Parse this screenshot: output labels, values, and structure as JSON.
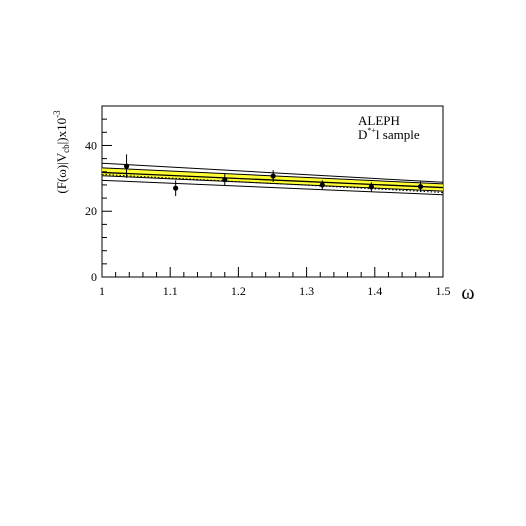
{
  "chart_data": {
    "type": "scatter",
    "title": "",
    "xlabel": "ω",
    "ylabel": "(F(ω)|V_cb|)x10^-3",
    "xlim": [
      1.0,
      1.5
    ],
    "ylim": [
      0,
      52
    ],
    "x_ticks": [
      1,
      1.1,
      1.2,
      1.3,
      1.4,
      1.5
    ],
    "x_tick_labels": [
      "1",
      "1.1",
      "1.2",
      "1.3",
      "1.4",
      "1.5"
    ],
    "y_ticks": [
      0,
      20,
      40
    ],
    "y_tick_labels": [
      "0",
      "20",
      "40"
    ],
    "annotation": {
      "line1": "ALEPH",
      "line2_main": "D",
      "line2_sup": "*+",
      "line2_rest": "l  sample"
    },
    "band_color": "#ffff33",
    "data_points": [
      {
        "x": 1.036,
        "y": 33.7,
        "err": 3.6
      },
      {
        "x": 1.108,
        "y": 27.0,
        "err": 2.4
      },
      {
        "x": 1.18,
        "y": 29.6,
        "err": 1.8
      },
      {
        "x": 1.251,
        "y": 30.7,
        "err": 1.8
      },
      {
        "x": 1.323,
        "y": 28.0,
        "err": 1.4
      },
      {
        "x": 1.395,
        "y": 27.4,
        "err": 1.4
      },
      {
        "x": 1.467,
        "y": 27.5,
        "err": 1.6
      }
    ],
    "fit": {
      "central": [
        [
          1.0,
          31.8
        ],
        [
          1.5,
          27.2
        ]
      ],
      "band_upper": [
        [
          1.0,
          33.2
        ],
        [
          1.5,
          28.3
        ]
      ],
      "band_lower": [
        [
          1.0,
          30.8
        ],
        [
          1.5,
          26.1
        ]
      ],
      "dotted_line": [
        [
          1.0,
          31.2
        ],
        [
          1.5,
          25.7
        ]
      ],
      "outer_upper": [
        [
          1.0,
          34.6
        ],
        [
          1.5,
          28.8
        ]
      ],
      "outer_lower": [
        [
          1.0,
          29.4
        ],
        [
          1.5,
          25.0
        ]
      ]
    }
  }
}
